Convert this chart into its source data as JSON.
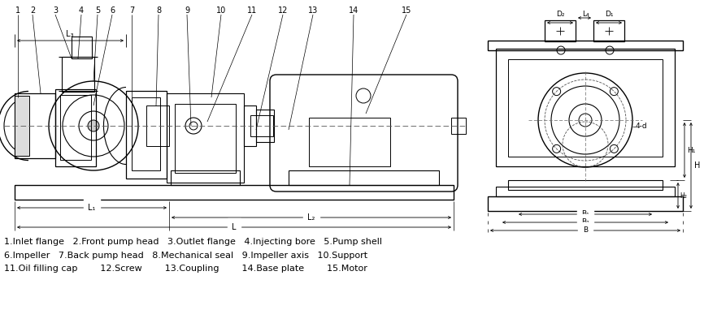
{
  "bg_color": "#ffffff",
  "caption_lines": [
    "1.Inlet flange   2.Front pump head   3.Outlet flange   4.Injecting bore   5.Pump shell",
    "6.Impeller   7.Back pump head   8.Mechanical seal   9.Impeller axis   10.Support",
    "11.Oil filling cap        12.Screw        13.Coupling        14.Base plate        15.Motor"
  ],
  "numbers_top": [
    "1",
    "2",
    "3",
    "4",
    "5",
    "6",
    "7",
    "8",
    "9",
    "10",
    "11",
    "12",
    "13",
    "14",
    "15"
  ]
}
